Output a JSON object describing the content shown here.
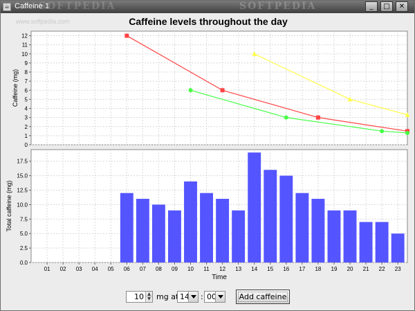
{
  "window": {
    "title": "Caffeine 1",
    "watermark_a": "SOFTPEDIA",
    "watermark_b": "SOFTPEDIA",
    "watermark_site": "www.softpedia.com",
    "buttons": {
      "minimize": "_",
      "maximize": "□",
      "close": "✕"
    }
  },
  "chart_title": "Caffeine levels throughout the day",
  "chart_data": [
    {
      "type": "line",
      "title": "Caffeine levels throughout the day",
      "ylabel": "Caffeine (mg)",
      "ylim": [
        0,
        12.5
      ],
      "yticks": [
        0,
        1,
        2,
        3,
        4,
        5,
        6,
        7,
        8,
        9,
        10,
        11,
        12
      ],
      "xlim": [
        0.5,
        24
      ],
      "grid": true,
      "series": [
        {
          "color": "#ff4444",
          "marker": "square",
          "points": [
            [
              6,
              12
            ],
            [
              12,
              6
            ],
            [
              18,
              3
            ],
            [
              24,
              1.5
            ]
          ]
        },
        {
          "color": "#ffff44",
          "marker": "triangle",
          "points": [
            [
              14,
              10
            ],
            [
              20,
              5
            ],
            [
              24,
              3.3
            ]
          ]
        },
        {
          "color": "#44ff44",
          "marker": "circle",
          "points": [
            [
              10,
              6
            ],
            [
              16,
              3
            ],
            [
              22,
              1.5
            ],
            [
              24,
              1.3
            ]
          ]
        }
      ]
    },
    {
      "type": "bar",
      "xlabel": "Time",
      "ylabel": "Total caffeine (mg)",
      "ylim": [
        0,
        19.5
      ],
      "yticks": [
        "0.0",
        "2.5",
        "5.0",
        "7.5",
        "10.0",
        "12.5",
        "15.0",
        "17.5"
      ],
      "grid": true,
      "color": "#5555ff",
      "categories": [
        "01",
        "02",
        "03",
        "04",
        "05",
        "06",
        "07",
        "08",
        "09",
        "10",
        "11",
        "12",
        "13",
        "14",
        "15",
        "16",
        "17",
        "18",
        "19",
        "20",
        "21",
        "22",
        "23"
      ],
      "values": [
        0,
        0,
        0,
        0,
        0,
        12,
        11,
        10,
        9,
        14,
        12,
        11,
        9,
        19,
        16,
        15,
        12,
        11,
        9,
        9,
        7,
        7,
        5
      ]
    }
  ],
  "controls": {
    "amount_value": "10",
    "mg_at_label": "mg at",
    "hour_value": "14",
    "colon": ":",
    "minute_value": "00",
    "add_button": "Add caffeine"
  }
}
